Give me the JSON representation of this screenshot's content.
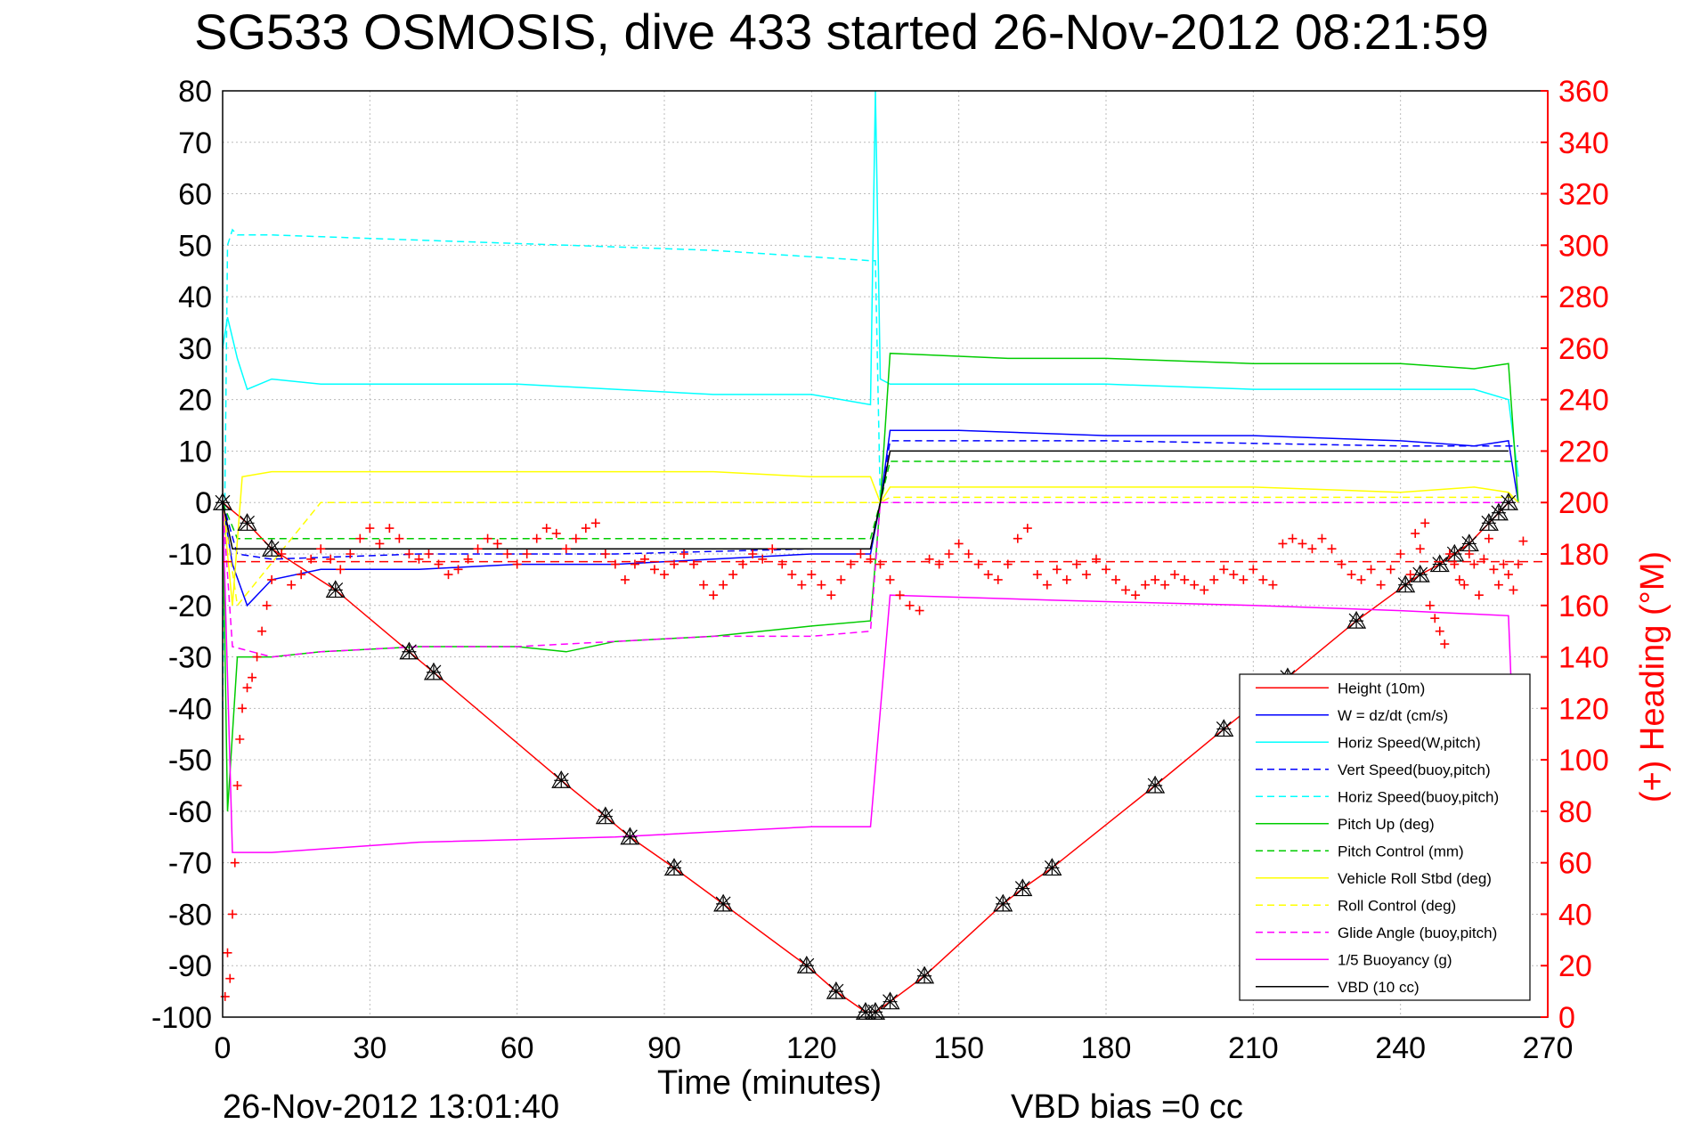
{
  "chart_data": {
    "type": "line",
    "title": "SG533 OSMOSIS, dive 433 started 26-Nov-2012 08:21:59",
    "xlabel": "Time (minutes)",
    "ylabel_right": "(+) Heading (°M)",
    "xlim": [
      0,
      270
    ],
    "ylim_left": [
      -100,
      80
    ],
    "ylim_right": [
      0,
      360
    ],
    "x_ticks": [
      "0",
      "30",
      "60",
      "90",
      "120",
      "150",
      "180",
      "210",
      "240",
      "270"
    ],
    "y_ticks_left": [
      "80",
      "70",
      "60",
      "50",
      "40",
      "30",
      "20",
      "10",
      "0",
      "-10",
      "-20",
      "-30",
      "-40",
      "-50",
      "-60",
      "-70",
      "-80",
      "-90",
      "-100"
    ],
    "y_ticks_right": [
      "360",
      "340",
      "320",
      "300",
      "280",
      "260",
      "240",
      "220",
      "200",
      "180",
      "160",
      "140",
      "120",
      "100",
      "80",
      "60",
      "40",
      "20",
      "0"
    ],
    "grid": true,
    "legend_position": "lower-right",
    "series": [
      {
        "name": "Height (10m)",
        "color": "#ff0000",
        "style": "solid",
        "x": [
          0,
          5,
          10,
          23,
          38,
          43,
          69,
          78,
          83,
          92,
          102,
          119,
          125,
          131,
          133,
          136,
          143,
          159,
          163,
          169,
          190,
          204,
          217,
          231,
          241,
          244,
          248,
          251,
          254,
          258,
          260,
          262
        ],
        "values": [
          0,
          -4,
          -9,
          -17,
          -29,
          -33,
          -54,
          -61,
          -65,
          -71,
          -78,
          -90,
          -95,
          -99,
          -99,
          -97,
          -92,
          -78,
          -75,
          -71,
          -55,
          -44,
          -34,
          -23,
          -16,
          -14,
          -12,
          -10,
          -8,
          -4,
          -2,
          0
        ]
      },
      {
        "name": "W = dz/dt (cm/s)",
        "color": "#0000ff",
        "style": "solid",
        "x": [
          0,
          2,
          5,
          10,
          20,
          40,
          60,
          80,
          100,
          120,
          132,
          134,
          136,
          150,
          180,
          210,
          240,
          255,
          262,
          264
        ],
        "values": [
          0,
          -12,
          -20,
          -15,
          -13,
          -13,
          -12,
          -12,
          -11,
          -10,
          -10,
          0,
          14,
          14,
          13,
          13,
          12,
          11,
          12,
          0
        ]
      },
      {
        "name": "Horiz Speed(W,pitch)",
        "color": "#00ffff",
        "style": "solid",
        "x": [
          0,
          1,
          3,
          5,
          10,
          20,
          40,
          60,
          80,
          100,
          120,
          132,
          133,
          134,
          136,
          150,
          180,
          210,
          240,
          255,
          262,
          264
        ],
        "values": [
          30,
          36,
          28,
          22,
          24,
          23,
          23,
          23,
          22,
          21,
          21,
          19,
          80,
          24,
          23,
          23,
          23,
          22,
          22,
          22,
          20,
          5
        ]
      },
      {
        "name": "Vert Speed(buoy,pitch)",
        "color": "#0000ff",
        "style": "dashed",
        "x": [
          0,
          3,
          10,
          40,
          80,
          120,
          132,
          134,
          136,
          180,
          240,
          264
        ],
        "values": [
          0,
          -10,
          -11,
          -10,
          -10,
          -9,
          -9,
          0,
          12,
          12,
          11,
          11
        ]
      },
      {
        "name": "Horiz Speed(buoy,pitch)",
        "color": "#00ffff",
        "style": "dashed",
        "x": [
          0,
          1,
          2,
          3,
          10,
          40,
          70,
          100,
          132,
          133,
          134
        ],
        "values": [
          -40,
          50,
          53,
          52,
          52,
          51,
          50,
          49,
          47,
          47,
          0
        ]
      },
      {
        "name": "Pitch Up (deg)",
        "color": "#00cc00",
        "style": "solid",
        "x": [
          0,
          1,
          3,
          10,
          20,
          40,
          60,
          70,
          80,
          100,
          120,
          132,
          134,
          136,
          160,
          180,
          210,
          240,
          255,
          262,
          264
        ],
        "values": [
          0,
          -60,
          -30,
          -30,
          -29,
          -28,
          -28,
          -29,
          -27,
          -26,
          -24,
          -23,
          0,
          29,
          28,
          28,
          27,
          27,
          26,
          27,
          0
        ]
      },
      {
        "name": "Pitch Control (mm)",
        "color": "#00cc00",
        "style": "dashed",
        "x": [
          0,
          3,
          20,
          60,
          100,
          132,
          134,
          136,
          180,
          240,
          264
        ],
        "values": [
          0,
          -7,
          -7,
          -7,
          -7,
          -7,
          0,
          8,
          8,
          8,
          8
        ]
      },
      {
        "name": "Vehicle Roll Stbd (deg)",
        "color": "#ffff00",
        "style": "solid",
        "x": [
          0,
          2,
          4,
          10,
          20,
          40,
          60,
          80,
          100,
          120,
          132,
          134,
          136,
          160,
          180,
          210,
          240,
          255,
          262,
          264
        ],
        "values": [
          0,
          -20,
          5,
          6,
          6,
          6,
          6,
          6,
          6,
          5,
          5,
          0,
          3,
          3,
          3,
          3,
          2,
          3,
          2,
          0
        ]
      },
      {
        "name": "Roll Control (deg)",
        "color": "#ffff00",
        "style": "dashed",
        "x": [
          0,
          3,
          20,
          60,
          100,
          132,
          134,
          136,
          180,
          240,
          264
        ],
        "values": [
          0,
          -20,
          0,
          0,
          0,
          0,
          0,
          1,
          1,
          1,
          1
        ]
      },
      {
        "name": "Glide Angle (buoy,pitch)",
        "color": "#ff00ff",
        "style": "dashed",
        "x": [
          0,
          2,
          10,
          20,
          40,
          60,
          80,
          100,
          120,
          132,
          134,
          136,
          180,
          240,
          264
        ],
        "values": [
          0,
          -28,
          -30,
          -29,
          -28,
          -28,
          -27,
          -26,
          -26,
          -25,
          0,
          0,
          0,
          0,
          0
        ]
      },
      {
        "name": "1/5 Buoyancy (g)",
        "color": "#ff00ff",
        "style": "solid",
        "x": [
          0,
          2,
          10,
          40,
          80,
          120,
          132,
          136,
          170,
          210,
          240,
          262,
          264
        ],
        "values": [
          0,
          -68,
          -68,
          -66,
          -65,
          -63,
          -63,
          -18,
          -19,
          -20,
          -21,
          -22,
          -70
        ]
      },
      {
        "name": "VBD (10 cc)",
        "color": "#000000",
        "style": "solid",
        "x": [
          0,
          2,
          10,
          60,
          120,
          132,
          134,
          136,
          180,
          240,
          262
        ],
        "values": [
          0,
          -9,
          -9,
          -9,
          -9,
          -9,
          0,
          10,
          10,
          10,
          10
        ]
      }
    ],
    "heading_reference": {
      "color": "#ff0000",
      "style": "dashed",
      "value_deg": 177
    },
    "heading_points": [
      {
        "x": 0.5,
        "h": 8
      },
      {
        "x": 1,
        "h": 25
      },
      {
        "x": 1.5,
        "h": 15
      },
      {
        "x": 2,
        "h": 40
      },
      {
        "x": 2.5,
        "h": 60
      },
      {
        "x": 3,
        "h": 90
      },
      {
        "x": 3.5,
        "h": 108
      },
      {
        "x": 4,
        "h": 120
      },
      {
        "x": 5,
        "h": 128
      },
      {
        "x": 6,
        "h": 132
      },
      {
        "x": 7,
        "h": 140
      },
      {
        "x": 8,
        "h": 150
      },
      {
        "x": 9,
        "h": 160
      },
      {
        "x": 10,
        "h": 170
      },
      {
        "x": 12,
        "h": 180
      },
      {
        "x": 14,
        "h": 168
      },
      {
        "x": 16,
        "h": 172
      },
      {
        "x": 18,
        "h": 178
      },
      {
        "x": 20,
        "h": 182
      },
      {
        "x": 22,
        "h": 178
      },
      {
        "x": 24,
        "h": 174
      },
      {
        "x": 26,
        "h": 180
      },
      {
        "x": 28,
        "h": 186
      },
      {
        "x": 30,
        "h": 190
      },
      {
        "x": 32,
        "h": 184
      },
      {
        "x": 34,
        "h": 190
      },
      {
        "x": 36,
        "h": 186
      },
      {
        "x": 38,
        "h": 180
      },
      {
        "x": 40,
        "h": 178
      },
      {
        "x": 42,
        "h": 180
      },
      {
        "x": 44,
        "h": 176
      },
      {
        "x": 46,
        "h": 172
      },
      {
        "x": 48,
        "h": 174
      },
      {
        "x": 50,
        "h": 178
      },
      {
        "x": 52,
        "h": 182
      },
      {
        "x": 54,
        "h": 186
      },
      {
        "x": 56,
        "h": 184
      },
      {
        "x": 58,
        "h": 180
      },
      {
        "x": 60,
        "h": 176
      },
      {
        "x": 62,
        "h": 180
      },
      {
        "x": 64,
        "h": 186
      },
      {
        "x": 66,
        "h": 190
      },
      {
        "x": 68,
        "h": 188
      },
      {
        "x": 70,
        "h": 182
      },
      {
        "x": 72,
        "h": 186
      },
      {
        "x": 74,
        "h": 190
      },
      {
        "x": 76,
        "h": 192
      },
      {
        "x": 78,
        "h": 180
      },
      {
        "x": 80,
        "h": 176
      },
      {
        "x": 82,
        "h": 170
      },
      {
        "x": 84,
        "h": 176
      },
      {
        "x": 86,
        "h": 178
      },
      {
        "x": 88,
        "h": 174
      },
      {
        "x": 90,
        "h": 172
      },
      {
        "x": 92,
        "h": 176
      },
      {
        "x": 94,
        "h": 180
      },
      {
        "x": 96,
        "h": 176
      },
      {
        "x": 98,
        "h": 168
      },
      {
        "x": 100,
        "h": 164
      },
      {
        "x": 102,
        "h": 168
      },
      {
        "x": 104,
        "h": 172
      },
      {
        "x": 106,
        "h": 176
      },
      {
        "x": 108,
        "h": 180
      },
      {
        "x": 110,
        "h": 178
      },
      {
        "x": 112,
        "h": 182
      },
      {
        "x": 114,
        "h": 176
      },
      {
        "x": 116,
        "h": 172
      },
      {
        "x": 118,
        "h": 168
      },
      {
        "x": 120,
        "h": 172
      },
      {
        "x": 122,
        "h": 168
      },
      {
        "x": 124,
        "h": 164
      },
      {
        "x": 126,
        "h": 170
      },
      {
        "x": 128,
        "h": 176
      },
      {
        "x": 130,
        "h": 180
      },
      {
        "x": 132,
        "h": 178
      },
      {
        "x": 134,
        "h": 176
      },
      {
        "x": 136,
        "h": 170
      },
      {
        "x": 138,
        "h": 164
      },
      {
        "x": 140,
        "h": 160
      },
      {
        "x": 142,
        "h": 158
      },
      {
        "x": 144,
        "h": 178
      },
      {
        "x": 146,
        "h": 176
      },
      {
        "x": 148,
        "h": 180
      },
      {
        "x": 150,
        "h": 184
      },
      {
        "x": 152,
        "h": 180
      },
      {
        "x": 154,
        "h": 176
      },
      {
        "x": 156,
        "h": 172
      },
      {
        "x": 158,
        "h": 170
      },
      {
        "x": 160,
        "h": 176
      },
      {
        "x": 162,
        "h": 186
      },
      {
        "x": 164,
        "h": 190
      },
      {
        "x": 166,
        "h": 172
      },
      {
        "x": 168,
        "h": 168
      },
      {
        "x": 170,
        "h": 174
      },
      {
        "x": 172,
        "h": 170
      },
      {
        "x": 174,
        "h": 176
      },
      {
        "x": 176,
        "h": 172
      },
      {
        "x": 178,
        "h": 178
      },
      {
        "x": 180,
        "h": 174
      },
      {
        "x": 182,
        "h": 170
      },
      {
        "x": 184,
        "h": 166
      },
      {
        "x": 186,
        "h": 164
      },
      {
        "x": 188,
        "h": 168
      },
      {
        "x": 190,
        "h": 170
      },
      {
        "x": 192,
        "h": 168
      },
      {
        "x": 194,
        "h": 172
      },
      {
        "x": 196,
        "h": 170
      },
      {
        "x": 198,
        "h": 168
      },
      {
        "x": 200,
        "h": 166
      },
      {
        "x": 202,
        "h": 170
      },
      {
        "x": 204,
        "h": 174
      },
      {
        "x": 206,
        "h": 172
      },
      {
        "x": 208,
        "h": 170
      },
      {
        "x": 210,
        "h": 174
      },
      {
        "x": 212,
        "h": 170
      },
      {
        "x": 214,
        "h": 168
      },
      {
        "x": 216,
        "h": 184
      },
      {
        "x": 218,
        "h": 186
      },
      {
        "x": 220,
        "h": 184
      },
      {
        "x": 222,
        "h": 182
      },
      {
        "x": 224,
        "h": 186
      },
      {
        "x": 226,
        "h": 182
      },
      {
        "x": 228,
        "h": 176
      },
      {
        "x": 230,
        "h": 172
      },
      {
        "x": 232,
        "h": 170
      },
      {
        "x": 234,
        "h": 174
      },
      {
        "x": 236,
        "h": 168
      },
      {
        "x": 238,
        "h": 174
      },
      {
        "x": 240,
        "h": 180
      },
      {
        "x": 242,
        "h": 172
      },
      {
        "x": 243,
        "h": 188
      },
      {
        "x": 244,
        "h": 182
      },
      {
        "x": 245,
        "h": 192
      },
      {
        "x": 246,
        "h": 160
      },
      {
        "x": 247,
        "h": 155
      },
      {
        "x": 248,
        "h": 150
      },
      {
        "x": 249,
        "h": 145
      },
      {
        "x": 250,
        "h": 180
      },
      {
        "x": 251,
        "h": 176
      },
      {
        "x": 252,
        "h": 170
      },
      {
        "x": 253,
        "h": 168
      },
      {
        "x": 254,
        "h": 180
      },
      {
        "x": 255,
        "h": 176
      },
      {
        "x": 256,
        "h": 164
      },
      {
        "x": 257,
        "h": 178
      },
      {
        "x": 258,
        "h": 186
      },
      {
        "x": 259,
        "h": 174
      },
      {
        "x": 260,
        "h": 168
      },
      {
        "x": 261,
        "h": 176
      },
      {
        "x": 262,
        "h": 172
      },
      {
        "x": 263,
        "h": 166
      },
      {
        "x": 264,
        "h": 176
      },
      {
        "x": 265,
        "h": 185
      }
    ],
    "footer_date": "26-Nov-2012 13:01:40",
    "footer_vbd": "VBD bias =0 cc"
  }
}
